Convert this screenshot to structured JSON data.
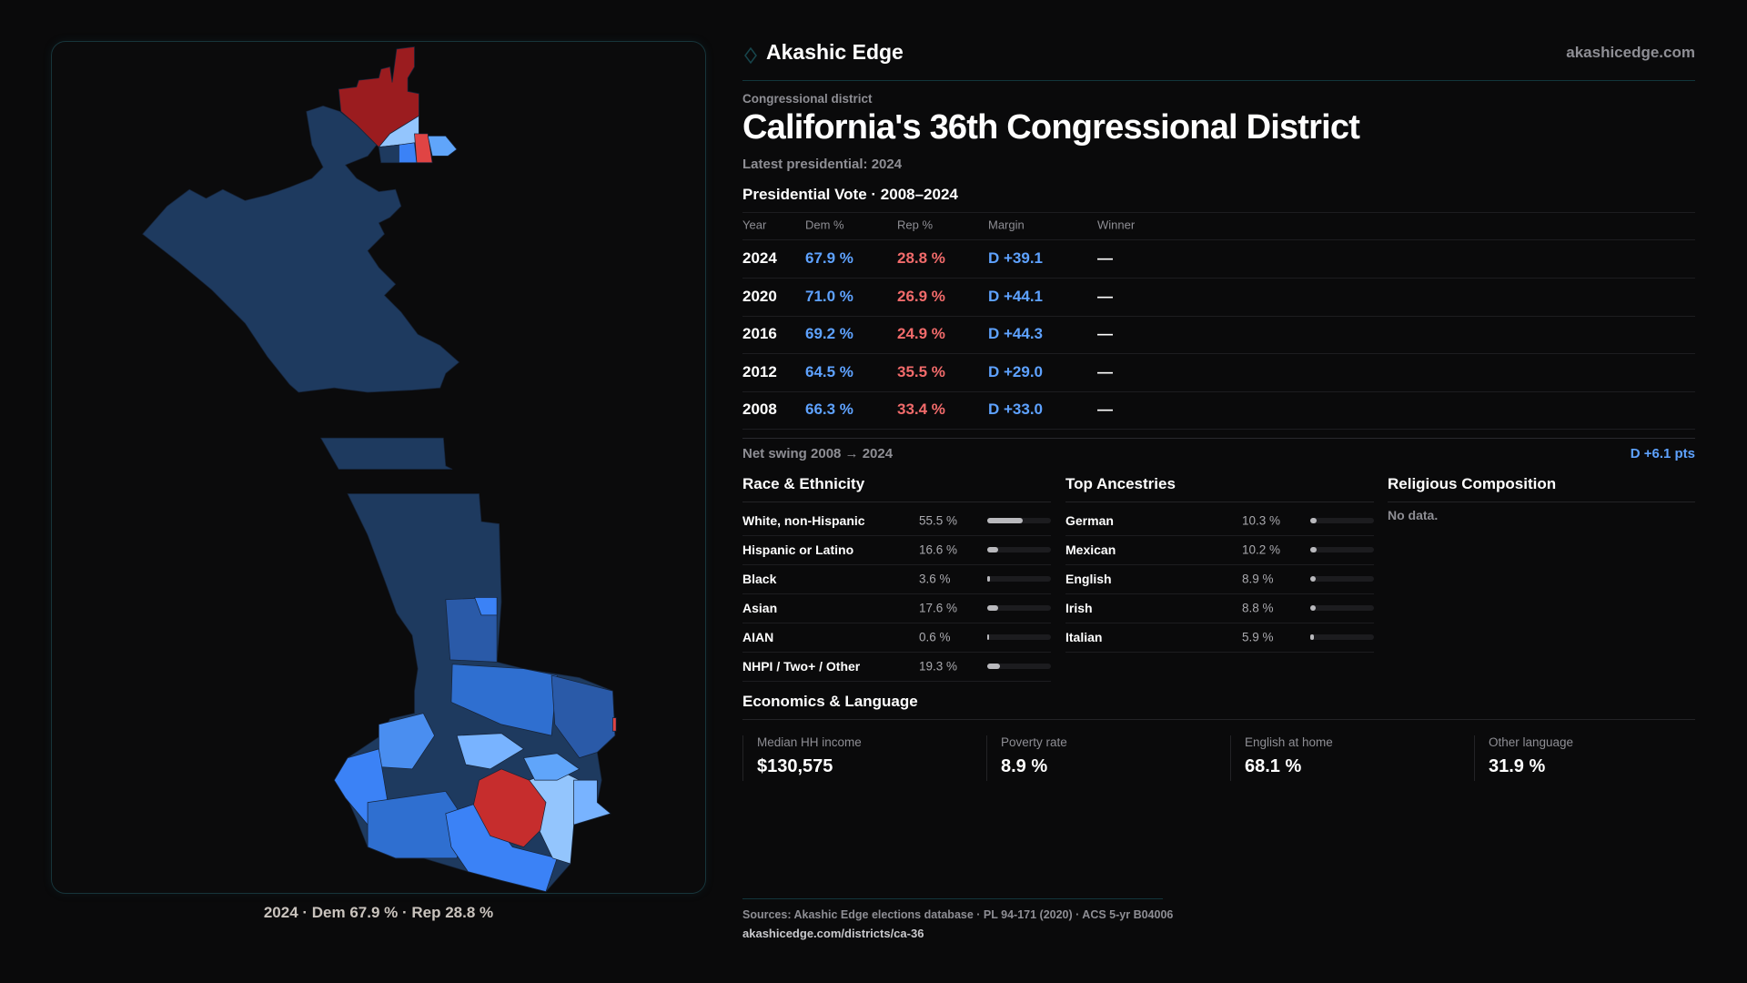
{
  "brand": {
    "name": "Akashic Edge",
    "site": "akashicedge.com",
    "logo_icon": "diamond-icon"
  },
  "header": {
    "eyebrow": "Congressional district",
    "title": "California's 36th Congressional District",
    "subtitle": "Latest presidential: 2024"
  },
  "presidential": {
    "heading": "Presidential Vote · 2008–2024",
    "columns": [
      "Year",
      "Dem %",
      "Rep %",
      "Margin",
      "Winner"
    ],
    "rows": [
      {
        "year": "2024",
        "dem": "67.9 %",
        "rep": "28.8 %",
        "margin": "D +39.1",
        "winner": "—"
      },
      {
        "year": "2020",
        "dem": "71.0 %",
        "rep": "26.9 %",
        "margin": "D +44.1",
        "winner": "—"
      },
      {
        "year": "2016",
        "dem": "69.2 %",
        "rep": "24.9 %",
        "margin": "D +44.3",
        "winner": "—"
      },
      {
        "year": "2012",
        "dem": "64.5 %",
        "rep": "35.5 %",
        "margin": "D +29.0",
        "winner": "—"
      },
      {
        "year": "2008",
        "dem": "66.3 %",
        "rep": "33.4 %",
        "margin": "D +33.0",
        "winner": "—"
      }
    ],
    "net_swing_label": "Net swing 2008 → 2024",
    "net_swing_value": "D +6.1 pts"
  },
  "race": {
    "heading": "Race & Ethnicity",
    "items": [
      {
        "label": "White, non-Hispanic",
        "value": "55.5 %",
        "pct": 55.5
      },
      {
        "label": "Hispanic or Latino",
        "value": "16.6 %",
        "pct": 16.6
      },
      {
        "label": "Black",
        "value": "3.6 %",
        "pct": 3.6
      },
      {
        "label": "Asian",
        "value": "17.6 %",
        "pct": 17.6
      },
      {
        "label": "AIAN",
        "value": "0.6 %",
        "pct": 0.6
      },
      {
        "label": "NHPI / Two+ / Other",
        "value": "19.3 %",
        "pct": 19.3
      }
    ]
  },
  "ancestry": {
    "heading": "Top Ancestries",
    "items": [
      {
        "label": "German",
        "value": "10.3 %",
        "pct": 10.3
      },
      {
        "label": "Mexican",
        "value": "10.2 %",
        "pct": 10.2
      },
      {
        "label": "English",
        "value": "8.9 %",
        "pct": 8.9
      },
      {
        "label": "Irish",
        "value": "8.8 %",
        "pct": 8.8
      },
      {
        "label": "Italian",
        "value": "5.9 %",
        "pct": 5.9
      }
    ]
  },
  "religion": {
    "heading": "Religious Composition",
    "empty": "No data."
  },
  "economics": {
    "heading": "Economics & Language",
    "stats": [
      {
        "label": "Median HH income",
        "value": "$130,575"
      },
      {
        "label": "Poverty rate",
        "value": "8.9 %"
      },
      {
        "label": "English at home",
        "value": "68.1 %"
      },
      {
        "label": "Other language",
        "value": "31.9 %"
      }
    ]
  },
  "map": {
    "caption": "2024 · Dem 67.9 % · Rep 28.8 %"
  },
  "footer": {
    "sources": "Sources: Akashic Edge elections database · PL 94-171 (2020) · ACS 5-yr B04006",
    "url": "akashicedge.com/districts/ca-36"
  },
  "colors": {
    "dem": "#5ea2ff",
    "rep": "#f26b6b",
    "bg": "#0a0a0b"
  }
}
